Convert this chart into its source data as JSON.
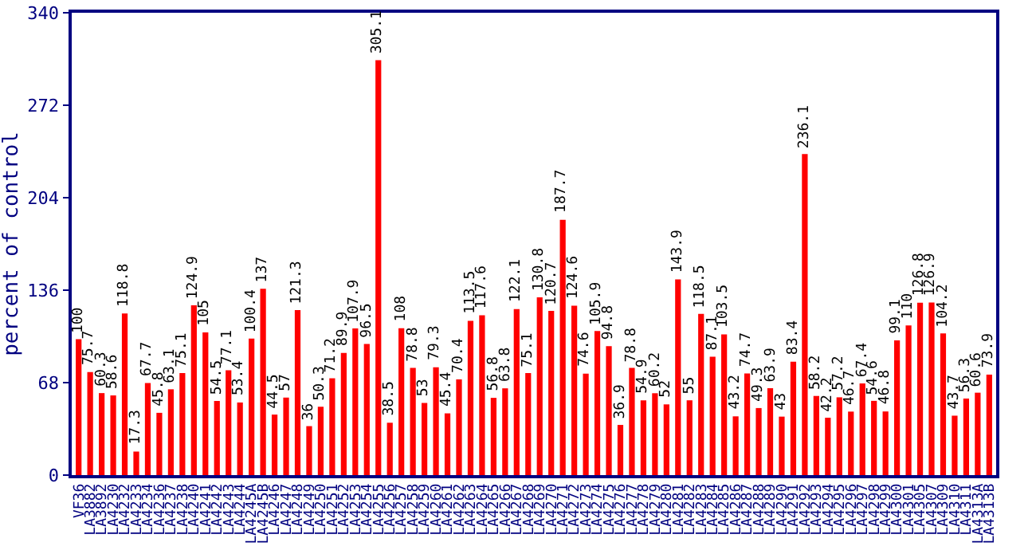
{
  "chart_data": {
    "type": "bar",
    "ylabel": "percent of control",
    "categories": [
      "VF36",
      "LA3882",
      "LA3892",
      "LA4230",
      "LA4232",
      "LA4233",
      "LA4234",
      "LA4236",
      "LA4237",
      "LA4238",
      "LA4240",
      "LA4241",
      "LA4242",
      "LA4243",
      "LA4244",
      "LA4245A",
      "LA4245B",
      "LA4246",
      "LA4247",
      "LA4248",
      "LA4249",
      "LA4250",
      "LA4251",
      "LA4252",
      "LA4253",
      "LA4254",
      "LA4255",
      "LA4256",
      "LA4257",
      "LA4258",
      "LA4259",
      "LA4260",
      "LA4261",
      "LA4262",
      "LA4263",
      "LA4264",
      "LA4265",
      "LA4266",
      "LA4267",
      "LA4268",
      "LA4269",
      "LA4270",
      "LA4271",
      "LA4272",
      "LA4273",
      "LA4274",
      "LA4275",
      "LA4276",
      "LA4277",
      "LA4278",
      "LA4279",
      "LA4280",
      "LA4281",
      "LA4282",
      "LA4283",
      "LA4284",
      "LA4285",
      "LA4286",
      "LA4287",
      "LA4288",
      "LA4289",
      "LA4290",
      "LA4291",
      "LA4292",
      "LA4293",
      "LA4294",
      "LA4295",
      "LA4296",
      "LA4297",
      "LA4298",
      "LA4299",
      "LA4300",
      "LA4301",
      "LA4305",
      "LA4307",
      "LA4309",
      "LA4310",
      "LA4311",
      "LA4313A",
      "LA4313B"
    ],
    "values": [
      100,
      75.7,
      60.3,
      58.6,
      118.8,
      17.3,
      67.7,
      45.8,
      63.1,
      75.1,
      124.9,
      105,
      54.5,
      77.1,
      53.4,
      100.4,
      137,
      44.5,
      57,
      121.3,
      36,
      50.3,
      71.2,
      89.9,
      107.9,
      96.5,
      305.1,
      38.5,
      108,
      78.8,
      53,
      79.3,
      45.4,
      70.4,
      113.5,
      117.6,
      56.8,
      63.8,
      122.1,
      75.1,
      130.8,
      120.7,
      187.7,
      124.6,
      74.6,
      105.9,
      94.8,
      36.9,
      78.8,
      54.9,
      60.2,
      52,
      143.9,
      55,
      118.5,
      87.1,
      103.5,
      43.2,
      74.7,
      49.3,
      63.9,
      43,
      83.4,
      236.1,
      58.2,
      42.2,
      57.2,
      46.7,
      67.4,
      54.6,
      46.8,
      99.1,
      110,
      126.8,
      126.9,
      104.2,
      43.7,
      56.3,
      60.6,
      73.9
    ],
    "color": "#ff0000",
    "ylim": [
      0,
      340
    ],
    "yticks": [
      0,
      68,
      136,
      204,
      272,
      340
    ],
    "data_labels": true,
    "grid": false,
    "legend": false
  }
}
